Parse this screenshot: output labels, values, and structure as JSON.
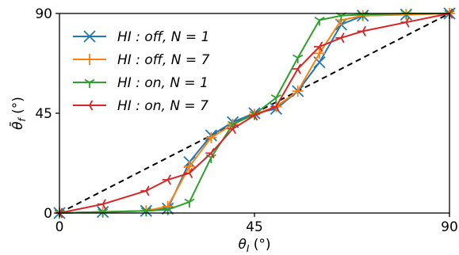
{
  "chart_data": {
    "type": "line",
    "xlabel": "θ_I (°)",
    "ylabel": "θ̄_f (°)",
    "xlim": [
      0,
      90
    ],
    "ylim": [
      0,
      90
    ],
    "xticks": [
      "0",
      "45",
      "90"
    ],
    "yticks": [
      "0",
      "45",
      "90"
    ],
    "grid": false,
    "legend_position": "top-left",
    "reference_line": {
      "style": "dashed",
      "color": "#000000",
      "x": [
        0,
        90
      ],
      "y": [
        0,
        90
      ]
    },
    "series": [
      {
        "name": "HI : off, N = 1",
        "color": "#1f77b4",
        "marker": "x",
        "x": [
          0,
          10,
          20,
          25,
          30,
          35,
          40,
          45,
          50,
          55,
          60,
          65,
          70,
          80,
          90
        ],
        "y": [
          0,
          0.5,
          1,
          2,
          23,
          35,
          41,
          45,
          47,
          55,
          68,
          85,
          89,
          89.5,
          90
        ]
      },
      {
        "name": "HI : off, N = 7",
        "color": "#ff7f0e",
        "marker": "+",
        "x": [
          0,
          10,
          20,
          25,
          30,
          35,
          40,
          45,
          50,
          55,
          60,
          65,
          70,
          80,
          90
        ],
        "y": [
          0,
          0.5,
          1,
          3,
          21,
          34,
          40,
          44.5,
          48,
          55,
          72,
          87,
          89,
          89.5,
          90
        ]
      },
      {
        "name": "HI : on, N = 1",
        "color": "#2ca02c",
        "marker": "tri_down",
        "x": [
          0,
          10,
          20,
          25,
          30,
          35,
          40,
          45,
          50,
          55,
          60,
          65,
          70,
          80,
          90
        ],
        "y": [
          0,
          0.5,
          1,
          1.5,
          5,
          25,
          40,
          44.5,
          52,
          70,
          87,
          89,
          89.5,
          90,
          90
        ]
      },
      {
        "name": "HI : on, N = 7",
        "color": "#d62728",
        "marker": "tri_left",
        "x": [
          0,
          10,
          20,
          25,
          30,
          35,
          40,
          45,
          50,
          55,
          60,
          65,
          70,
          80,
          90
        ],
        "y": [
          0,
          4,
          10,
          15,
          18,
          27,
          38,
          44,
          48,
          65,
          75,
          79,
          82,
          86,
          90
        ]
      }
    ]
  }
}
